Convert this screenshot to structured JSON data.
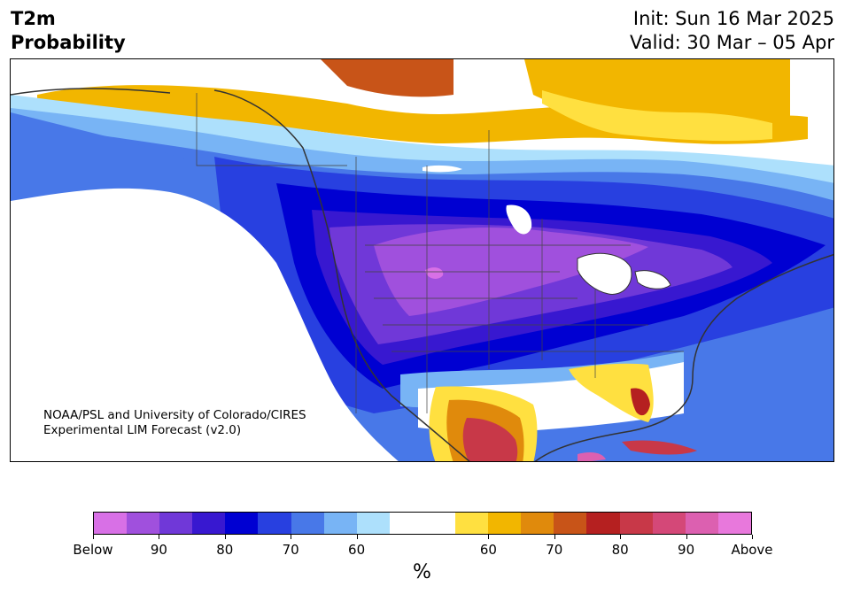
{
  "title": {
    "variable": "T2m",
    "product": "Probability",
    "init": "Init: Sun 16 Mar 2025",
    "valid": "Valid: 30 Mar – 05 Apr"
  },
  "credit": {
    "line1": "NOAA/PSL and University of Colorado/CIRES",
    "line2": "Experimental LIM Forecast (v2.0)"
  },
  "colorbar": {
    "colors": [
      "#d870e6",
      "#a050dd",
      "#7038d8",
      "#3818d0",
      "#0000d2",
      "#2840e0",
      "#4878e8",
      "#78b4f5",
      "#ade0fc",
      "#ffffff",
      "#ffffff",
      "#ffe040",
      "#f2b600",
      "#e08a0c",
      "#c85418",
      "#b52020",
      "#c83848",
      "#d44878",
      "#dc60b0",
      "#e878dc"
    ],
    "tick_labels": [
      "Below",
      "90",
      "80",
      "70",
      "60",
      "60",
      "70",
      "80",
      "90",
      "Above"
    ],
    "tick_cells": [
      0,
      2,
      4,
      6,
      8,
      12,
      14,
      16,
      18,
      20
    ],
    "unit": "%"
  },
  "map": {
    "region": "North America",
    "legend_meaning": "Below = below-normal probability (cool colors), Above = above-normal probability (warm colors)"
  }
}
